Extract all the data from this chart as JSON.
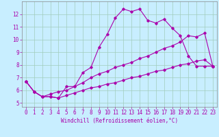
{
  "title": "",
  "xlabel": "Windchill (Refroidissement éolien,°C)",
  "bg_color": "#c8eeff",
  "grid_color": "#a0ccbb",
  "line_color": "#aa00aa",
  "xlim": [
    -0.5,
    23.5
  ],
  "ylim": [
    4.7,
    13.0
  ],
  "xticks": [
    0,
    1,
    2,
    3,
    4,
    5,
    6,
    7,
    8,
    9,
    10,
    11,
    12,
    13,
    14,
    15,
    16,
    17,
    18,
    19,
    20,
    21,
    22,
    23
  ],
  "yticks": [
    5,
    6,
    7,
    8,
    9,
    10,
    11,
    12
  ],
  "line1_x": [
    0,
    1,
    2,
    3,
    4,
    5,
    6,
    7,
    8,
    9,
    10,
    11,
    12,
    13,
    14,
    15,
    16,
    17,
    18,
    19,
    20,
    21,
    22,
    23
  ],
  "line1_y": [
    6.7,
    5.9,
    5.5,
    5.5,
    5.4,
    6.3,
    6.3,
    7.4,
    7.8,
    9.4,
    10.4,
    11.7,
    12.4,
    12.2,
    12.4,
    11.5,
    11.3,
    11.6,
    10.9,
    10.3,
    8.7,
    7.9,
    7.9,
    7.9
  ],
  "line2_x": [
    0,
    1,
    2,
    3,
    4,
    5,
    6,
    7,
    8,
    9,
    10,
    11,
    12,
    13,
    14,
    15,
    16,
    17,
    18,
    19,
    20,
    21,
    22,
    23
  ],
  "line2_y": [
    6.7,
    5.9,
    5.5,
    5.7,
    5.9,
    6.0,
    6.3,
    6.6,
    7.0,
    7.3,
    7.5,
    7.8,
    8.0,
    8.2,
    8.5,
    8.7,
    9.0,
    9.3,
    9.5,
    9.8,
    10.3,
    10.2,
    10.5,
    7.9
  ],
  "line3_x": [
    0,
    1,
    2,
    3,
    4,
    5,
    6,
    7,
    8,
    9,
    10,
    11,
    12,
    13,
    14,
    15,
    16,
    17,
    18,
    19,
    20,
    21,
    22,
    23
  ],
  "line3_y": [
    6.7,
    5.9,
    5.5,
    5.5,
    5.4,
    5.6,
    5.8,
    6.0,
    6.2,
    6.3,
    6.5,
    6.6,
    6.8,
    7.0,
    7.1,
    7.3,
    7.5,
    7.6,
    7.8,
    8.0,
    8.1,
    8.3,
    8.4,
    7.9
  ],
  "tick_fontsize": 5.5,
  "xlabel_fontsize": 5.5
}
